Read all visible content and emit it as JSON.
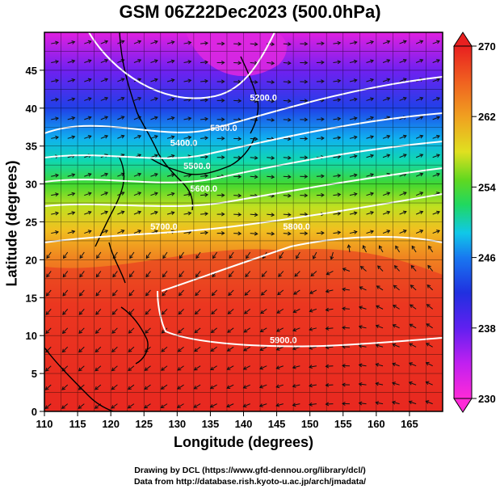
{
  "title": "GSM 06Z22Dec2023 (500.0hPa)",
  "xlabel": "Longitude (degrees)",
  "ylabel": "Latitude (degrees)",
  "credits": {
    "line1": "Drawing by DCL (https://www.gfd-dennou.org/library/dcl/)",
    "line2": "Data from http://database.rish.kyoto-u.ac.jp/arch/jmadata/"
  },
  "chart_data": {
    "type": "heatmap",
    "variable_shading": "temperature (K)",
    "variable_contours": "geopotential height (m)",
    "xlim": [
      110,
      170
    ],
    "ylim": [
      0,
      50
    ],
    "x_ticks": [
      "110",
      "115",
      "120",
      "125",
      "130",
      "135",
      "140",
      "145",
      "150",
      "155",
      "160",
      "165"
    ],
    "y_ticks": [
      "0",
      "5",
      "10",
      "15",
      "20",
      "25",
      "30",
      "35",
      "40",
      "45"
    ],
    "colorbar": {
      "range": [
        230,
        270
      ],
      "tick_labels": [
        "230",
        "238",
        "246",
        "254",
        "262",
        "270"
      ],
      "colors": [
        "#ff2ad8",
        "#c020f0",
        "#7020f0",
        "#2030e0",
        "#1878f0",
        "#10c8e8",
        "#10d8a0",
        "#30d830",
        "#b0e020",
        "#f0d820",
        "#f0a020",
        "#f07020",
        "#f04020",
        "#e82020"
      ]
    },
    "contour_labels": [
      {
        "text": "5200.0",
        "lon": 143,
        "lat": 41
      },
      {
        "text": "5300.0",
        "lon": 137,
        "lat": 37
      },
      {
        "text": "5400.0",
        "lon": 131,
        "lat": 35
      },
      {
        "text": "5500.0",
        "lon": 133,
        "lat": 32
      },
      {
        "text": "5600.0",
        "lon": 134,
        "lat": 29
      },
      {
        "text": "5700.0",
        "lon": 128,
        "lat": 24
      },
      {
        "text": "5800.0",
        "lon": 148,
        "lat": 24
      },
      {
        "text": "5900.0",
        "lon": 146,
        "lat": 9
      }
    ],
    "grid": true,
    "overlay": "wind vectors and streamlines, coastlines"
  }
}
